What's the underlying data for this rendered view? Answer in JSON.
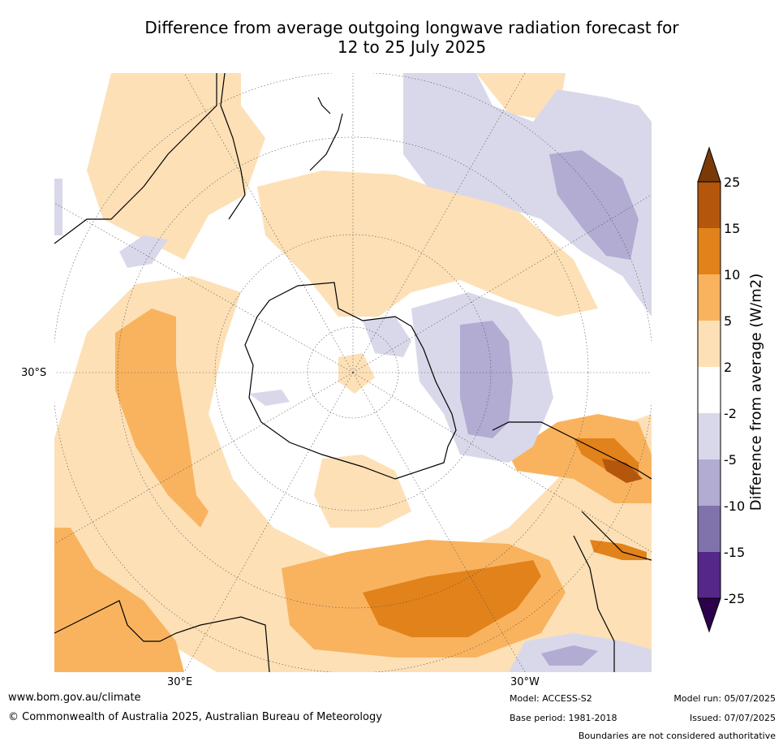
{
  "title_line1": "Difference from average outgoing longwave radiation forecast for",
  "title_line2": "12 to 25 July 2025",
  "lat_label": "30°S",
  "lon_label_e": "30°E",
  "lon_label_w": "30°W",
  "colorbar": {
    "label": "Difference from average (W/m2)",
    "ticks": [
      "25",
      "15",
      "10",
      "5",
      "2",
      "-2",
      "-5",
      "-10",
      "-15",
      "-25"
    ],
    "colors": [
      "#7a3a08",
      "#b4560c",
      "#e2821a",
      "#f9b35f",
      "#fde0b6",
      "#ffffff",
      "#d9d8ea",
      "#b2abd2",
      "#8073ac",
      "#542788",
      "#2d004b"
    ]
  },
  "footer": {
    "website": "www.bom.gov.au/climate",
    "copyright": "© Commonwealth of Australia 2025, Australian Bureau of Meteorology",
    "model": "Model: ACCESS-S2",
    "base_period": "Base period: 1981-2018",
    "model_run": "Model run: 05/07/2025",
    "issued": "Issued: 07/07/2025",
    "disclaimer": "Boundaries are not considered authoritative"
  }
}
